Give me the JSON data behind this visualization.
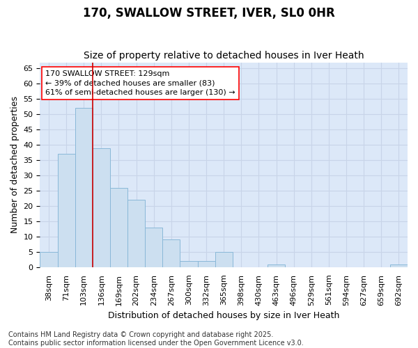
{
  "title": "170, SWALLOW STREET, IVER, SL0 0HR",
  "subtitle": "Size of property relative to detached houses in Iver Heath",
  "xlabel": "Distribution of detached houses by size in Iver Heath",
  "ylabel": "Number of detached properties",
  "categories": [
    "38sqm",
    "71sqm",
    "103sqm",
    "136sqm",
    "169sqm",
    "202sqm",
    "234sqm",
    "267sqm",
    "300sqm",
    "332sqm",
    "365sqm",
    "398sqm",
    "430sqm",
    "463sqm",
    "496sqm",
    "529sqm",
    "561sqm",
    "594sqm",
    "627sqm",
    "659sqm",
    "692sqm"
  ],
  "values": [
    5,
    37,
    52,
    39,
    26,
    22,
    13,
    9,
    2,
    2,
    5,
    0,
    0,
    1,
    0,
    0,
    0,
    0,
    0,
    0,
    1
  ],
  "bar_color": "#ccdff0",
  "bar_edge_color": "#89b8d8",
  "vline_color": "#cc0000",
  "vline_x_index": 3,
  "annotation_text": "170 SWALLOW STREET: 129sqm\n← 39% of detached houses are smaller (83)\n61% of semi-detached houses are larger (130) →",
  "annotation_box_facecolor": "white",
  "annotation_box_edgecolor": "red",
  "ylim": [
    0,
    67
  ],
  "yticks": [
    0,
    5,
    10,
    15,
    20,
    25,
    30,
    35,
    40,
    45,
    50,
    55,
    60,
    65
  ],
  "grid_color": "#c8d4e8",
  "plot_bg_color": "#dce8f8",
  "fig_bg_color": "#ffffff",
  "footer": "Contains HM Land Registry data © Crown copyright and database right 2025.\nContains public sector information licensed under the Open Government Licence v3.0.",
  "title_fontsize": 12,
  "subtitle_fontsize": 10,
  "axis_label_fontsize": 9,
  "tick_fontsize": 8,
  "annotation_fontsize": 8,
  "footer_fontsize": 7
}
